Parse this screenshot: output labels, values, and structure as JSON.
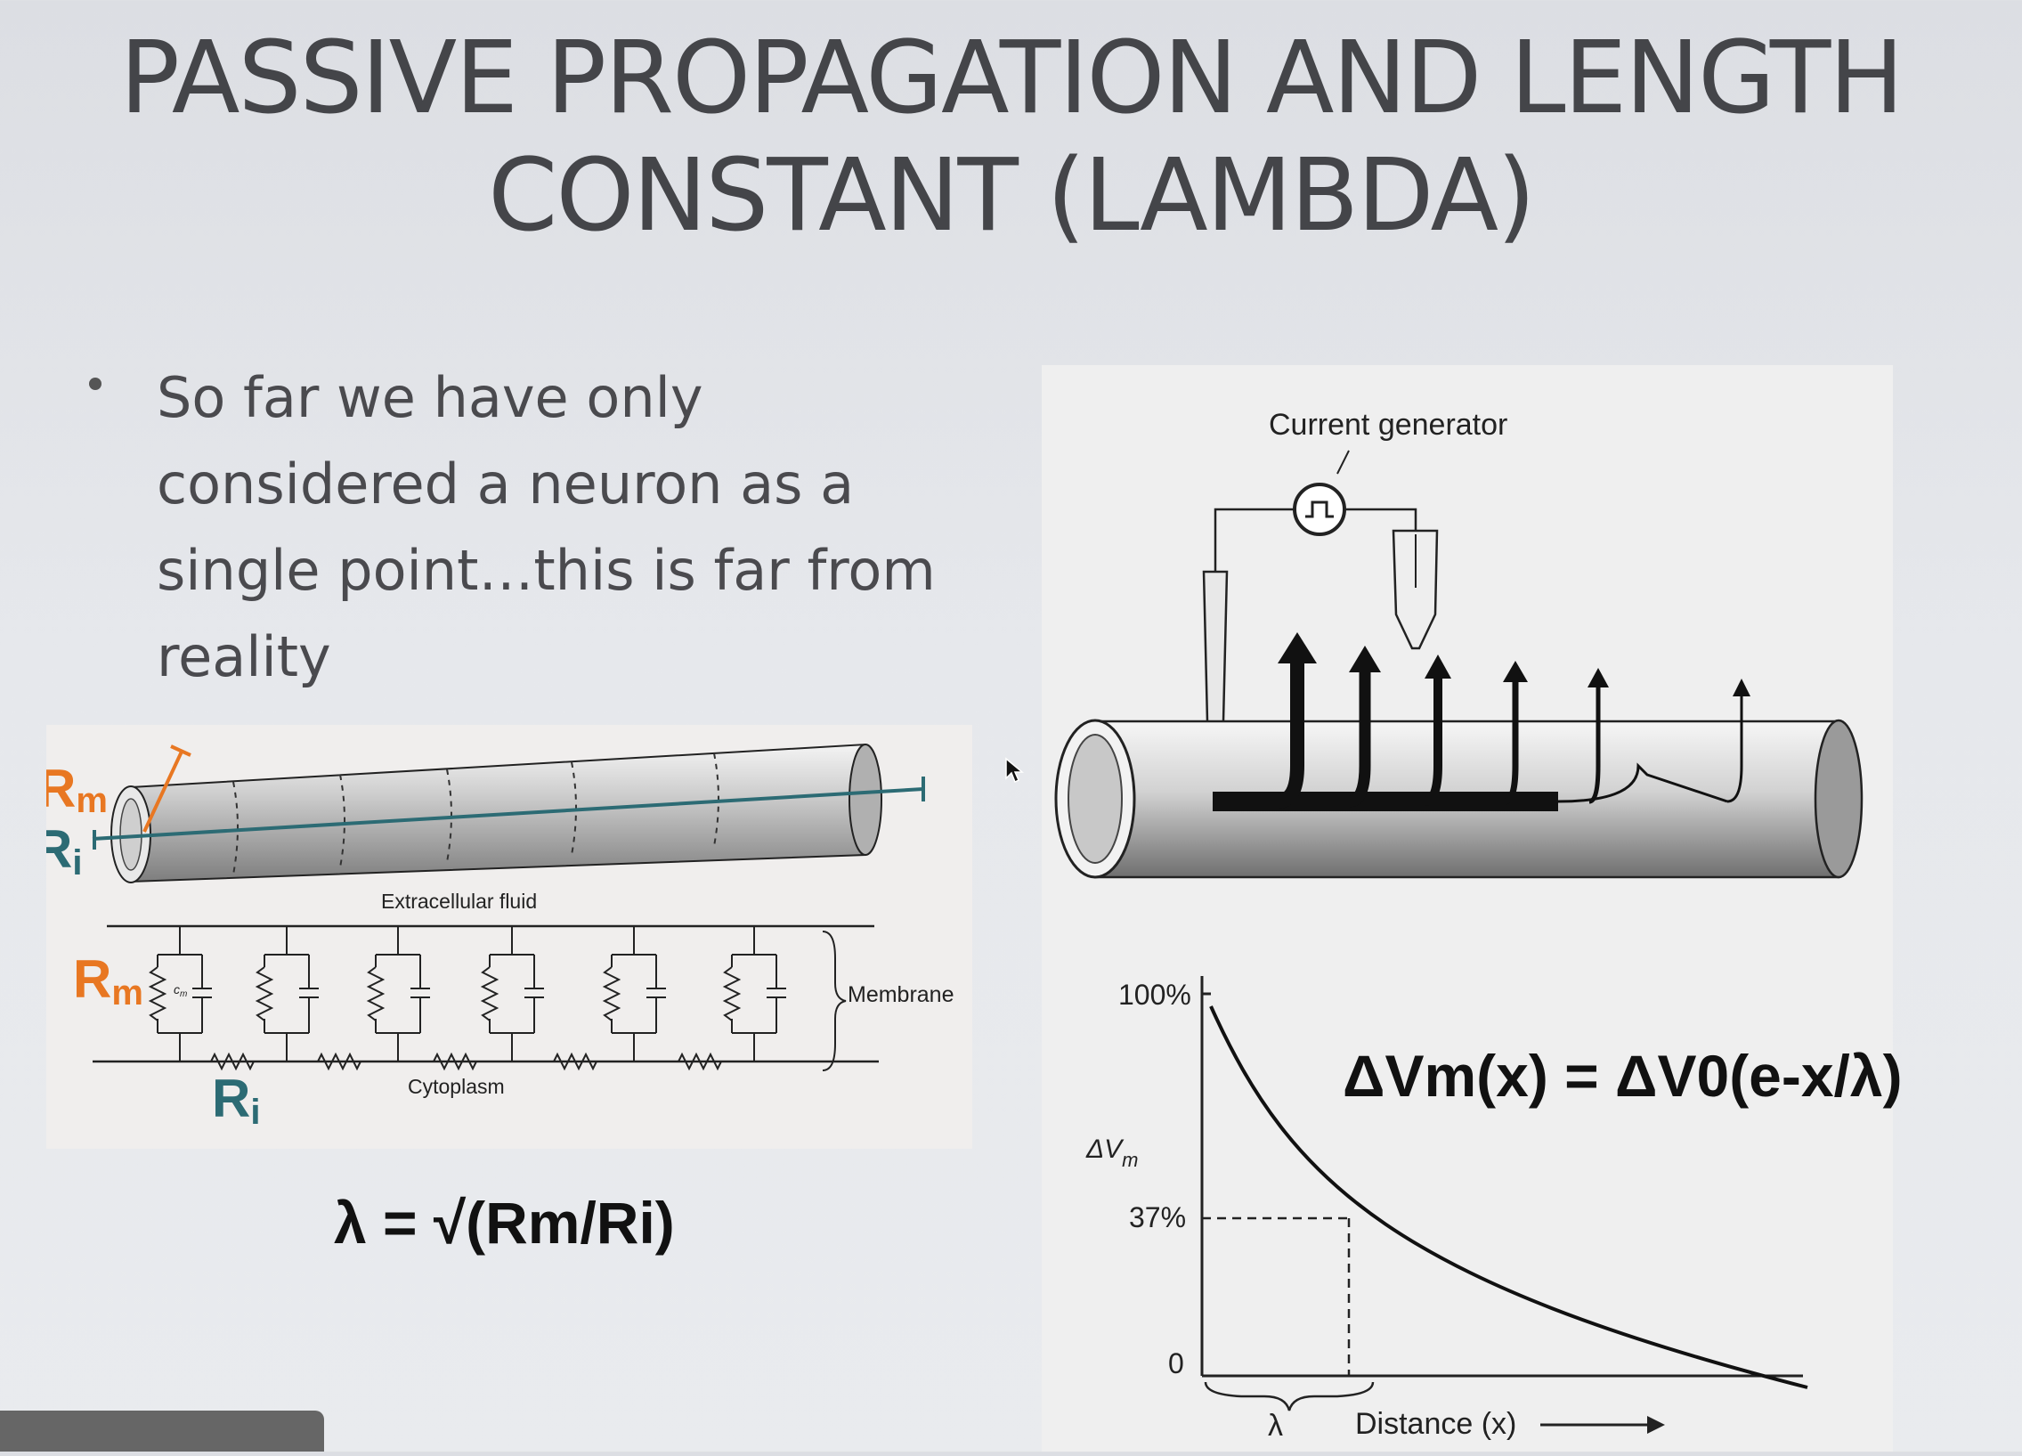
{
  "slide": {
    "title_line1": "PASSIVE PROPAGATION AND LENGTH",
    "title_line2": "CONSTANT (LAMBDA)",
    "bullet": "So far we have only considered a neuron as a single point…this is far from reality"
  },
  "left_figure": {
    "rm_label": "R",
    "rm_sub": "m",
    "ri_label": "R",
    "ri_sub": "i",
    "extracellular": "Extracellular fluid",
    "membrane": "Membrane",
    "cytoplasm": "Cytoplasm",
    "cm_label": "c",
    "cm_sub": "m",
    "formula": "λ = √(Rm/Ri)",
    "colors": {
      "rm": "#e87722",
      "ri": "#2c6b74"
    }
  },
  "right_figure": {
    "generator_label": "Current generator",
    "formula": "ΔVm(x) = ΔV0(e-x/λ)",
    "y_top_label": "100%",
    "y_mid_label": "37%",
    "y_zero_label": "0",
    "y_axis_label": "ΔV",
    "y_axis_sub": "m",
    "lambda_label": "λ",
    "x_axis_label": "Distance (x)"
  }
}
